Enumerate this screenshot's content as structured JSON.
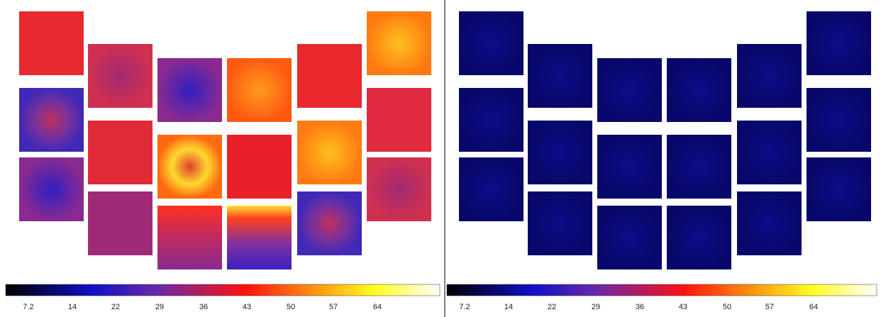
{
  "left_colorbar": {
    "ticks": [
      "7.2",
      "14",
      "22",
      "29",
      "36",
      "43",
      "50",
      "57",
      "64"
    ]
  },
  "right_colorbar": {
    "ticks": [
      "7.2",
      "14",
      "22",
      "29",
      "36",
      "43",
      "50",
      "57",
      "64"
    ]
  }
}
